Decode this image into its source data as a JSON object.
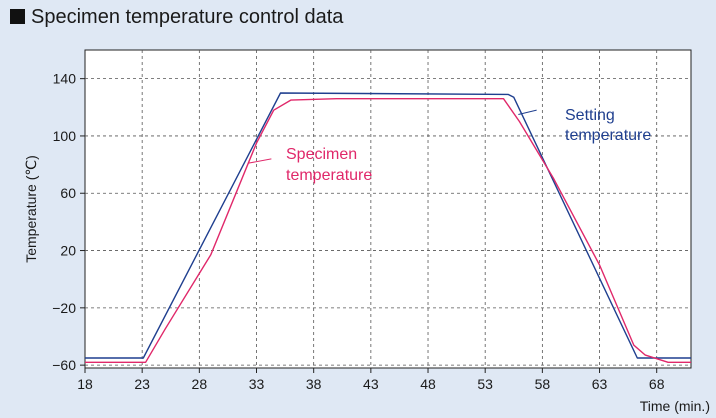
{
  "title": "Specimen temperature control data",
  "chart_data": {
    "type": "line",
    "xlabel": "Time (min.)",
    "ylabel": "Temperature (℃)",
    "xlim": [
      18,
      71
    ],
    "ylim": [
      -62,
      160
    ],
    "x_ticks": [
      18,
      23,
      28,
      33,
      38,
      43,
      48,
      53,
      58,
      63,
      68
    ],
    "x_tick_labels": [
      "18",
      "23",
      "28",
      "33",
      "38",
      "43",
      "48",
      "53",
      "58",
      "63",
      "68"
    ],
    "y_ticks": [
      -60,
      -20,
      20,
      60,
      100,
      140
    ],
    "y_tick_labels": [
      "−60",
      "−20",
      "20",
      "60",
      "100",
      "140"
    ],
    "grid": true,
    "series": [
      {
        "name": "Setting temperature",
        "label_lines": [
          "Setting",
          "temperature"
        ],
        "color": "#1f3f8f",
        "x": [
          18,
          23.1,
          35.1,
          55,
          55.5,
          66.3,
          71
        ],
        "y": [
          -55,
          -55,
          130,
          129,
          127,
          -55,
          -55
        ]
      },
      {
        "name": "Specimen temperature",
        "label_lines": [
          "Specimen",
          "temperature"
        ],
        "color": "#e0286a",
        "x": [
          18,
          23.3,
          25,
          29,
          33,
          34.5,
          36,
          40,
          48,
          54.6,
          56,
          59,
          63,
          66,
          67,
          69,
          71
        ],
        "y": [
          -58,
          -58,
          -35,
          17,
          95,
          118,
          125,
          126,
          126,
          126,
          110,
          70,
          10,
          -46,
          -53,
          -58,
          -58
        ]
      }
    ]
  }
}
